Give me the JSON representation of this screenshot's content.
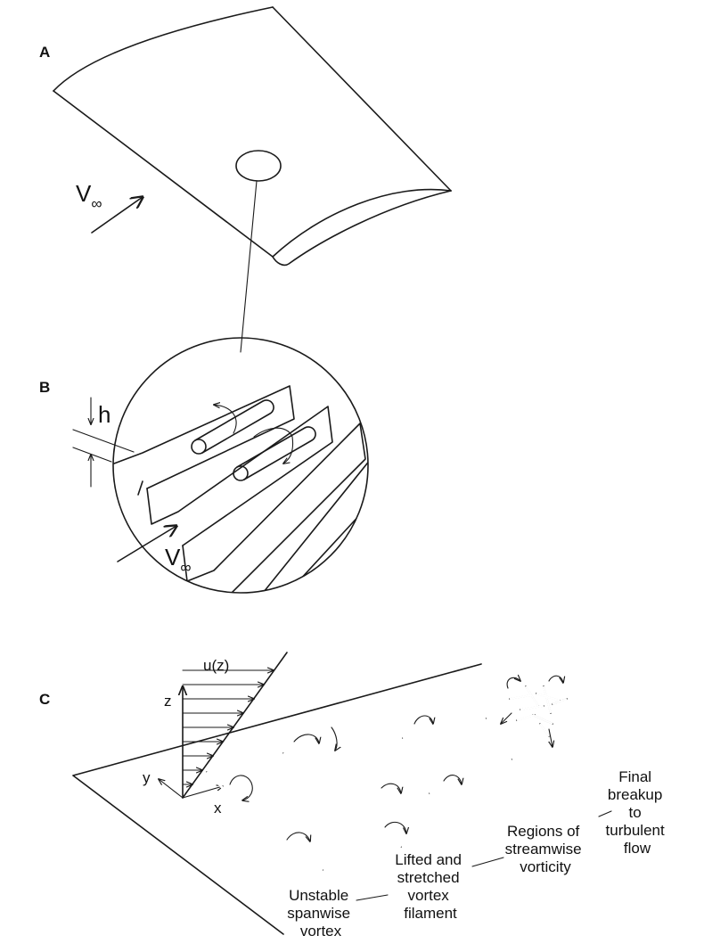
{
  "panels": {
    "a": {
      "label": "A",
      "velocity_symbol": "V",
      "velocity_subscript": "∞"
    },
    "b": {
      "label": "B",
      "height_symbol": "h",
      "velocity_symbol": "V",
      "velocity_subscript": "∞"
    },
    "c": {
      "label": "C",
      "profile_label": "u(z)",
      "axis_z": "z",
      "axis_y": "y",
      "axis_x": "x",
      "stages": [
        {
          "lines": [
            "Unstable",
            "spanwise",
            "vortex"
          ]
        },
        {
          "lines": [
            "Lifted and",
            "stretched",
            "vortex",
            "filament"
          ]
        },
        {
          "lines": [
            "Regions of",
            "streamwise",
            "vorticity"
          ]
        },
        {
          "lines": [
            "Final",
            "breakup",
            "to",
            "turbulent",
            "flow"
          ]
        }
      ]
    }
  }
}
